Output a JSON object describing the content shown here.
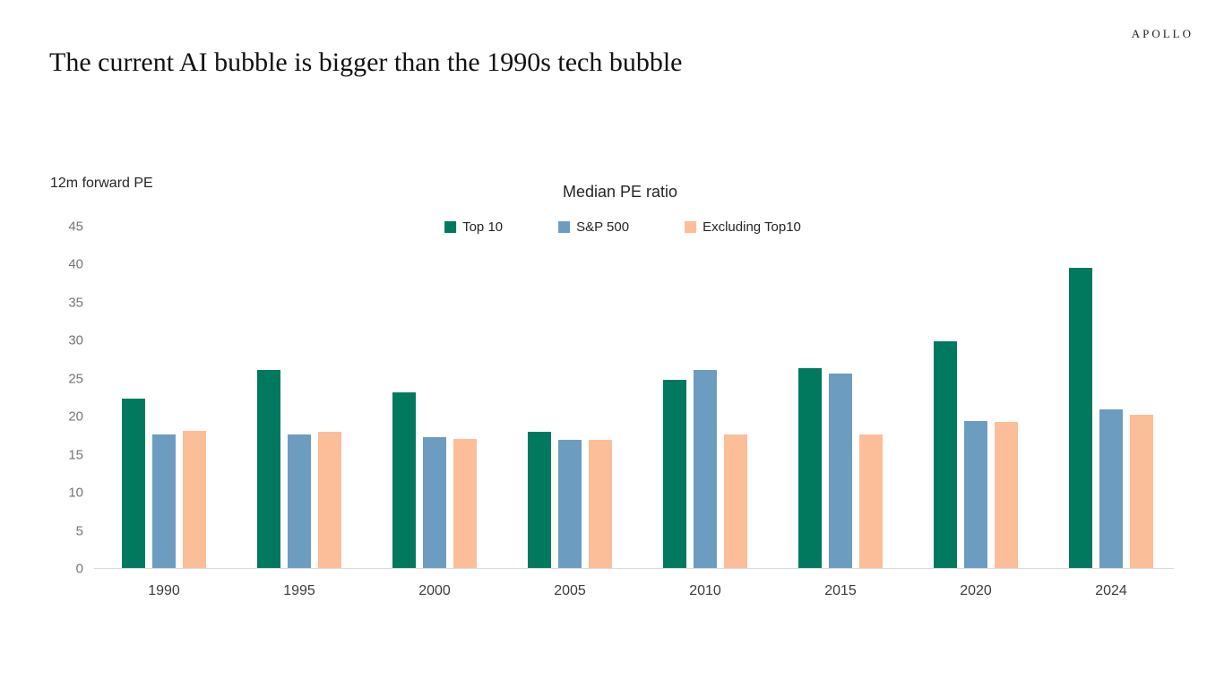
{
  "logo": "APOLLO",
  "page_title": "The current AI bubble is bigger than the 1990s tech bubble",
  "chart_data": {
    "type": "bar",
    "title": "Median PE ratio",
    "ylabel": "12m forward PE",
    "xlabel": "",
    "categories": [
      "1990",
      "1995",
      "2000",
      "2005",
      "2010",
      "2015",
      "2020",
      "2024"
    ],
    "series": [
      {
        "name": "Top 10",
        "color": "#00795E",
        "values": [
          22.3,
          26.0,
          23.1,
          17.9,
          24.7,
          26.3,
          29.8,
          39.5
        ]
      },
      {
        "name": "S&P 500",
        "color": "#6D9CC1",
        "values": [
          17.5,
          17.6,
          17.2,
          16.9,
          26.0,
          25.6,
          19.3,
          20.8
        ]
      },
      {
        "name": "Excluding Top10",
        "color": "#FBBE98",
        "values": [
          18.0,
          17.9,
          17.0,
          16.9,
          17.5,
          17.5,
          19.2,
          20.1
        ]
      }
    ],
    "ylim": [
      0,
      45
    ],
    "yticks": [
      0,
      5,
      10,
      15,
      20,
      25,
      30,
      35,
      40,
      45
    ],
    "grid": false,
    "legend_position": "top-center"
  }
}
